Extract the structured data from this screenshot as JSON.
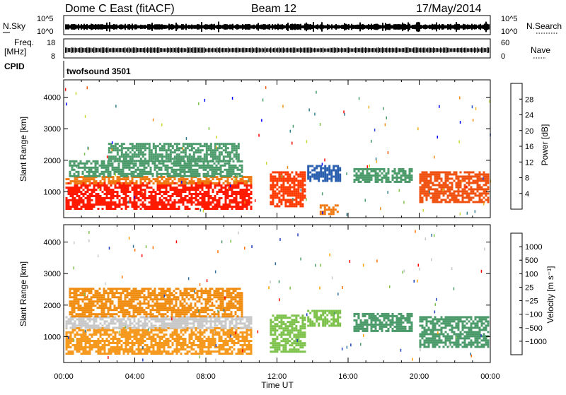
{
  "header": {
    "station": "Dome C East (fitACF)",
    "beam": "Beam 12",
    "date": "17/May/2014"
  },
  "top_panels": {
    "nsky_label": "N.Sky",
    "nsky_ticks": [
      "10^5",
      "10^0"
    ],
    "nsearch_label": "N.Search",
    "freq_label_line1": "Freq.",
    "freq_label_line2": "[MHz]",
    "freq_ticks": [
      "18",
      "8"
    ],
    "nave_ticks": [
      "60",
      "0"
    ],
    "nave_label": "Nave",
    "cpid_label": "CPID",
    "cpid_value": "twofsound 3501"
  },
  "chart_data": [
    {
      "type": "heatmap",
      "name": "power",
      "ylabel": "Slant Range [km]",
      "xlabel": "Time UT",
      "x_ticks": [
        "00:00",
        "04:00",
        "08:00",
        "12:00",
        "16:00",
        "20:00",
        "00:00"
      ],
      "x_range_hours": [
        0,
        24
      ],
      "y_ticks": [
        1000,
        2000,
        3000,
        4000
      ],
      "y_range_km": [
        180,
        4550
      ],
      "colorbar": {
        "label": "Power [dB]",
        "ticks": [
          "28",
          "24",
          "20",
          "16",
          "12",
          "8",
          "4"
        ],
        "colors": [
          "#0000ff",
          "#1f4fd0",
          "#2f7a8a",
          "#4a9a6a",
          "#7cc24a",
          "#c8d830",
          "#f0b020",
          "#f08c10",
          "#f05a10",
          "#ff0000"
        ]
      },
      "regions": [
        {
          "t0": 0.1,
          "t1": 10.6,
          "r0": 450,
          "r1": 1300,
          "color": "#ff1a00"
        },
        {
          "t0": 0.1,
          "t1": 10.6,
          "r0": 1250,
          "r1": 1500,
          "color": "#f07810"
        },
        {
          "t0": 0.3,
          "t1": 10.0,
          "r0": 1500,
          "r1": 2000,
          "color": "#4a9a6a"
        },
        {
          "t0": 2.5,
          "t1": 9.8,
          "r0": 2000,
          "r1": 2550,
          "color": "#4a9a6a"
        },
        {
          "t0": 11.6,
          "t1": 13.6,
          "r0": 550,
          "r1": 1650,
          "color": "#ff3a00"
        },
        {
          "t0": 13.7,
          "t1": 15.6,
          "r0": 1350,
          "r1": 1850,
          "color": "#2a5fb0"
        },
        {
          "t0": 14.4,
          "t1": 15.4,
          "r0": 300,
          "r1": 600,
          "color": "#f07810"
        },
        {
          "t0": 16.3,
          "t1": 19.6,
          "r0": 1300,
          "r1": 1750,
          "color": "#4a9a6a"
        },
        {
          "t0": 20.0,
          "t1": 23.9,
          "r0": 650,
          "r1": 1650,
          "color": "#f05010"
        }
      ]
    },
    {
      "type": "heatmap",
      "name": "velocity",
      "ylabel": "Slant Range [km]",
      "xlabel": "Time UT",
      "x_ticks": [
        "00:00",
        "04:00",
        "08:00",
        "12:00",
        "16:00",
        "20:00",
        "00:00"
      ],
      "x_range_hours": [
        0,
        24
      ],
      "y_ticks": [
        1000,
        2000,
        3000,
        4000
      ],
      "y_range_km": [
        180,
        4550
      ],
      "colorbar": {
        "label": "Velocity [m s⁻¹]",
        "ticks": [
          "1000",
          "500",
          "100",
          "25",
          "−25",
          "−100",
          "−500",
          "−1000"
        ],
        "colors": [
          "#2040c0",
          "#3070a0",
          "#4a9a6a",
          "#7cc24a",
          "#c8c8c8",
          "#ffa000",
          "#ff7000",
          "#ff0000"
        ]
      },
      "regions": [
        {
          "t0": 0.1,
          "t1": 10.6,
          "r0": 450,
          "r1": 1300,
          "color": "#f59a1f"
        },
        {
          "t0": 0.1,
          "t1": 10.6,
          "r0": 1250,
          "r1": 1650,
          "color": "#c8c8c8"
        },
        {
          "t0": 0.3,
          "t1": 10.0,
          "r0": 1650,
          "r1": 2550,
          "color": "#f08c10"
        },
        {
          "t0": 11.6,
          "t1": 13.6,
          "r0": 550,
          "r1": 1700,
          "color": "#7cc24a"
        },
        {
          "t0": 13.7,
          "t1": 15.6,
          "r0": 1350,
          "r1": 1850,
          "color": "#7cc24a"
        },
        {
          "t0": 16.3,
          "t1": 19.6,
          "r0": 1200,
          "r1": 1750,
          "color": "#4a9a6a"
        },
        {
          "t0": 20.0,
          "t1": 23.9,
          "r0": 650,
          "r1": 1650,
          "color": "#4a9a6a"
        }
      ]
    }
  ]
}
